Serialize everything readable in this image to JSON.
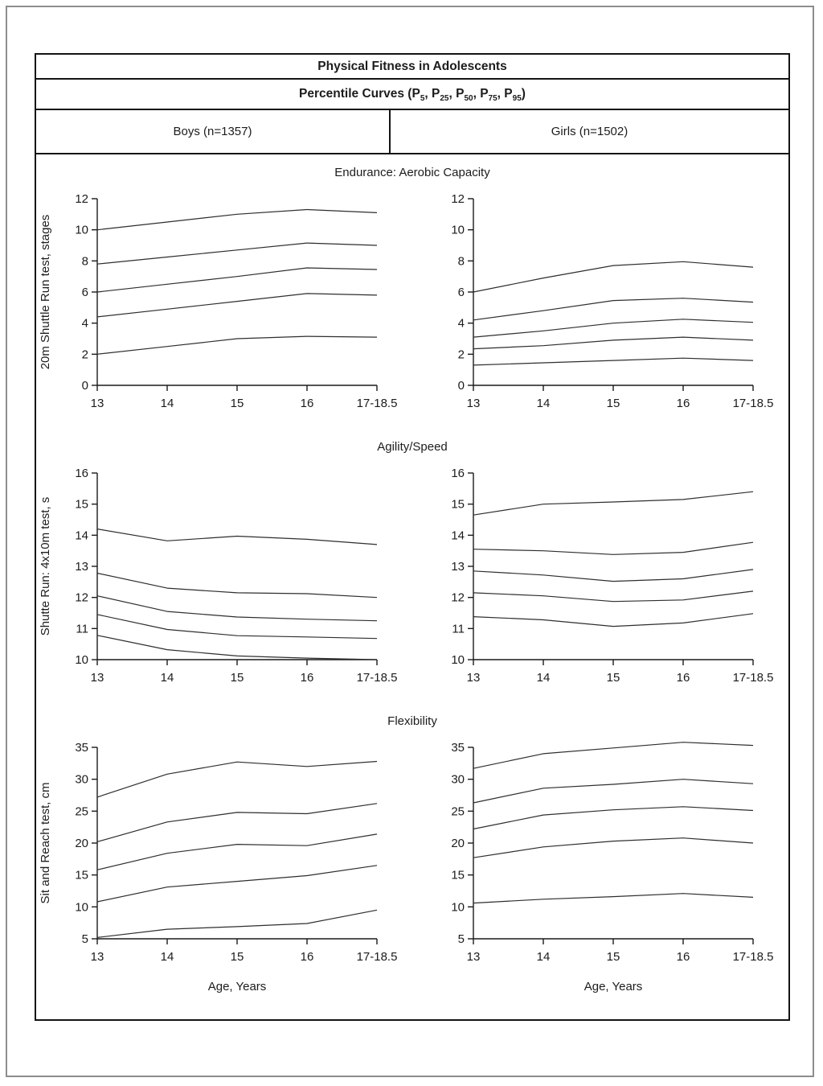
{
  "page": {
    "background": "#ffffff",
    "outer_border_color": "#8d8d8d"
  },
  "colors": {
    "line": "#2e2e2e",
    "axis": "#1a1a1a",
    "text": "#1c1c1c",
    "table_border": "#141414"
  },
  "header": {
    "title": "Physical Fitness in Adolescents",
    "subtitle_prefix": "Percentile Curves",
    "percentiles": [
      "5",
      "25",
      "50",
      "75",
      "95"
    ],
    "columns": [
      {
        "label": "Boys (n=1357)"
      },
      {
        "label": "Girls (n=1502)"
      }
    ]
  },
  "sections": [
    {
      "title": "Endurance: Aerobic Capacity",
      "charts": [
        "boys-endurance",
        "girls-endurance"
      ]
    },
    {
      "title": "Agility/Speed",
      "charts": [
        "boys-agility",
        "girls-agility"
      ]
    },
    {
      "title": "Flexibility",
      "charts": [
        "boys-flexibility",
        "girls-flexibility"
      ]
    }
  ],
  "chart_data": [
    {
      "id": "boys-endurance",
      "type": "line",
      "column": "Boys (n=1357)",
      "section": "Endurance: Aerobic Capacity",
      "ylabel": "20m Shuttle Run test, stages",
      "xlabel": "",
      "x_categories": [
        "13",
        "14",
        "15",
        "16",
        "17-18.5"
      ],
      "ylim": [
        0,
        12
      ],
      "yticks": [
        0,
        2,
        4,
        6,
        8,
        10,
        12
      ],
      "series": [
        {
          "name": "P95",
          "values": [
            10.0,
            10.5,
            11.0,
            11.3,
            11.1
          ]
        },
        {
          "name": "P75",
          "values": [
            7.8,
            8.25,
            8.7,
            9.15,
            9.0
          ]
        },
        {
          "name": "P50",
          "values": [
            6.0,
            6.5,
            7.0,
            7.55,
            7.45
          ]
        },
        {
          "name": "P25",
          "values": [
            4.4,
            4.9,
            5.4,
            5.9,
            5.8
          ]
        },
        {
          "name": "P5",
          "values": [
            2.0,
            2.5,
            3.0,
            3.15,
            3.1
          ]
        }
      ]
    },
    {
      "id": "girls-endurance",
      "type": "line",
      "column": "Girls (n=1502)",
      "section": "Endurance: Aerobic Capacity",
      "ylabel": "",
      "xlabel": "",
      "x_categories": [
        "13",
        "14",
        "15",
        "16",
        "17-18.5"
      ],
      "ylim": [
        0,
        12
      ],
      "yticks": [
        0,
        2,
        4,
        6,
        8,
        10,
        12
      ],
      "series": [
        {
          "name": "P95",
          "values": [
            6.0,
            6.9,
            7.7,
            7.95,
            7.6
          ]
        },
        {
          "name": "P75",
          "values": [
            4.2,
            4.8,
            5.45,
            5.6,
            5.35
          ]
        },
        {
          "name": "P50",
          "values": [
            3.1,
            3.5,
            4.0,
            4.25,
            4.05
          ]
        },
        {
          "name": "P25",
          "values": [
            2.35,
            2.55,
            2.9,
            3.1,
            2.9
          ]
        },
        {
          "name": "P5",
          "values": [
            1.3,
            1.45,
            1.6,
            1.75,
            1.6
          ]
        }
      ]
    },
    {
      "id": "boys-agility",
      "type": "line",
      "column": "Boys (n=1357)",
      "section": "Agility/Speed",
      "ylabel": "Shutte Run: 4x10m test, s",
      "xlabel": "",
      "x_categories": [
        "13",
        "14",
        "15",
        "16",
        "17-18.5"
      ],
      "ylim": [
        10,
        16
      ],
      "yticks": [
        10,
        11,
        12,
        13,
        14,
        15,
        16
      ],
      "series": [
        {
          "name": "P95",
          "values": [
            14.2,
            13.82,
            13.97,
            13.87,
            13.7
          ]
        },
        {
          "name": "P75",
          "values": [
            12.78,
            12.3,
            12.15,
            12.12,
            12.0
          ]
        },
        {
          "name": "P50",
          "values": [
            12.05,
            11.55,
            11.37,
            11.3,
            11.25
          ]
        },
        {
          "name": "P25",
          "values": [
            11.45,
            10.97,
            10.77,
            10.73,
            10.68
          ]
        },
        {
          "name": "P5",
          "values": [
            10.78,
            10.32,
            10.12,
            10.05,
            10.0
          ]
        }
      ]
    },
    {
      "id": "girls-agility",
      "type": "line",
      "column": "Girls (n=1502)",
      "section": "Agility/Speed",
      "ylabel": "",
      "xlabel": "",
      "x_categories": [
        "13",
        "14",
        "15",
        "16",
        "17-18.5"
      ],
      "ylim": [
        10,
        16
      ],
      "yticks": [
        10,
        11,
        12,
        13,
        14,
        15,
        16
      ],
      "series": [
        {
          "name": "P95",
          "values": [
            14.65,
            15.0,
            15.07,
            15.15,
            15.4
          ]
        },
        {
          "name": "P75",
          "values": [
            13.55,
            13.5,
            13.38,
            13.45,
            13.77
          ]
        },
        {
          "name": "P50",
          "values": [
            12.85,
            12.72,
            12.52,
            12.6,
            12.9
          ]
        },
        {
          "name": "P25",
          "values": [
            12.15,
            12.05,
            11.87,
            11.92,
            12.2
          ]
        },
        {
          "name": "P5",
          "values": [
            11.38,
            11.28,
            11.07,
            11.18,
            11.48
          ]
        }
      ]
    },
    {
      "id": "boys-flexibility",
      "type": "line",
      "column": "Boys (n=1357)",
      "section": "Flexibility",
      "ylabel": "Sit and Reach test, cm",
      "xlabel": "Age, Years",
      "x_categories": [
        "13",
        "14",
        "15",
        "16",
        "17-18.5"
      ],
      "ylim": [
        5,
        35
      ],
      "yticks": [
        5,
        10,
        15,
        20,
        25,
        30,
        35
      ],
      "series": [
        {
          "name": "P95",
          "values": [
            27.2,
            30.8,
            32.7,
            32.0,
            32.8
          ]
        },
        {
          "name": "P75",
          "values": [
            20.2,
            23.3,
            24.8,
            24.6,
            26.2
          ]
        },
        {
          "name": "P50",
          "values": [
            15.8,
            18.4,
            19.8,
            19.6,
            21.4
          ]
        },
        {
          "name": "P25",
          "values": [
            10.8,
            13.1,
            14.0,
            14.9,
            16.5
          ]
        },
        {
          "name": "P5",
          "values": [
            5.2,
            6.5,
            6.9,
            7.4,
            9.5
          ]
        }
      ]
    },
    {
      "id": "girls-flexibility",
      "type": "line",
      "column": "Girls (n=1502)",
      "section": "Flexibility",
      "ylabel": "",
      "xlabel": "Age, Years",
      "x_categories": [
        "13",
        "14",
        "15",
        "16",
        "17-18.5"
      ],
      "ylim": [
        5,
        35
      ],
      "yticks": [
        5,
        10,
        15,
        20,
        25,
        30,
        35
      ],
      "series": [
        {
          "name": "P95",
          "values": [
            31.7,
            34.0,
            34.9,
            35.8,
            35.3
          ]
        },
        {
          "name": "P75",
          "values": [
            26.3,
            28.6,
            29.2,
            30.0,
            29.3
          ]
        },
        {
          "name": "P50",
          "values": [
            22.2,
            24.4,
            25.2,
            25.7,
            25.1
          ]
        },
        {
          "name": "P25",
          "values": [
            17.7,
            19.4,
            20.3,
            20.8,
            20.0
          ]
        },
        {
          "name": "P5",
          "values": [
            10.6,
            11.2,
            11.6,
            12.1,
            11.5
          ]
        }
      ]
    }
  ]
}
